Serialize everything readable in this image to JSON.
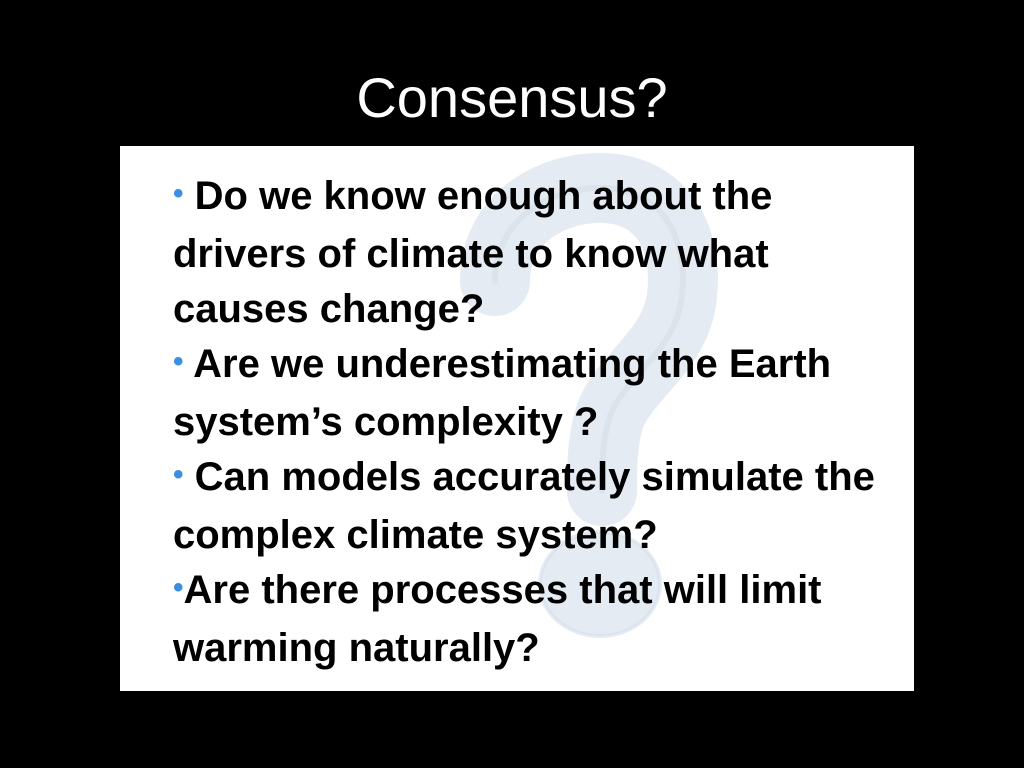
{
  "slide": {
    "title": "Consensus?",
    "background_color": "#000000",
    "panel_color": "#ffffff",
    "bullet_color": "#3b8fe0",
    "watermark_icon": "question-mark-icon",
    "bullets": [
      {
        "marker": "•",
        "gap": " ",
        "text": "Do we know enough about the drivers of climate to know what causes change?"
      },
      {
        "marker": "•",
        "gap": " ",
        "text": "Are we underestimating the Earth system’s complexity ?"
      },
      {
        "marker": "•",
        "gap": " ",
        "text": "Can models accurately simulate the complex climate system?"
      },
      {
        "marker": "•",
        "gap": "",
        "text": "Are there processes that will limit warming naturally?"
      }
    ]
  }
}
